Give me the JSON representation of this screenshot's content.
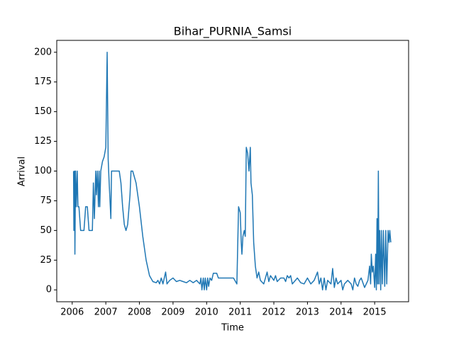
{
  "chart_data": {
    "type": "line",
    "title": "Bihar_PURNIA_Samsi",
    "xlabel": "Time",
    "ylabel": "Arrival",
    "xlim": [
      2005.54,
      2016.01
    ],
    "ylim": [
      -10,
      210
    ],
    "xticks": [
      2006,
      2007,
      2008,
      2009,
      2010,
      2011,
      2012,
      2013,
      2014,
      2015
    ],
    "yticks": [
      0,
      25,
      50,
      75,
      100,
      125,
      150,
      175,
      200
    ],
    "series": [
      {
        "name": "Arrival",
        "color": "#1f77b4",
        "x": [
          2006.04,
          2006.05,
          2006.07,
          2006.08,
          2006.1,
          2006.12,
          2006.15,
          2006.17,
          2006.2,
          2006.25,
          2006.35,
          2006.4,
          2006.45,
          2006.5,
          2006.6,
          2006.63,
          2006.66,
          2006.7,
          2006.72,
          2006.75,
          2006.78,
          2006.8,
          2006.82,
          2006.85,
          2006.9,
          2006.95,
          2007.0,
          2007.04,
          2007.07,
          2007.1,
          2007.15,
          2007.17,
          2007.4,
          2007.45,
          2007.5,
          2007.55,
          2007.6,
          2007.65,
          2007.72,
          2007.75,
          2007.8,
          2007.9,
          2008.0,
          2008.1,
          2008.2,
          2008.3,
          2008.4,
          2008.5,
          2008.55,
          2008.6,
          2008.65,
          2008.7,
          2008.78,
          2008.82,
          2008.9,
          2009.0,
          2009.1,
          2009.2,
          2009.3,
          2009.4,
          2009.5,
          2009.6,
          2009.7,
          2009.8,
          2009.83,
          2009.86,
          2009.9,
          2009.93,
          2009.96,
          2010.0,
          2010.03,
          2010.06,
          2010.1,
          2010.15,
          2010.2,
          2010.3,
          2010.35,
          2010.5,
          2010.6,
          2010.7,
          2010.8,
          2010.9,
          2010.95,
          2011.0,
          2011.03,
          2011.05,
          2011.08,
          2011.12,
          2011.15,
          2011.18,
          2011.22,
          2011.26,
          2011.3,
          2011.32,
          2011.36,
          2011.4,
          2011.45,
          2011.5,
          2011.55,
          2011.6,
          2011.7,
          2011.8,
          2011.85,
          2011.9,
          2012.0,
          2012.05,
          2012.1,
          2012.2,
          2012.3,
          2012.35,
          2012.4,
          2012.45,
          2012.5,
          2012.55,
          2012.7,
          2012.8,
          2012.9,
          2013.0,
          2013.1,
          2013.2,
          2013.3,
          2013.35,
          2013.4,
          2013.45,
          2013.5,
          2013.55,
          2013.6,
          2013.7,
          2013.75,
          2013.8,
          2013.85,
          2013.9,
          2014.0,
          2014.05,
          2014.1,
          2014.2,
          2014.3,
          2014.35,
          2014.4,
          2014.45,
          2014.5,
          2014.55,
          2014.6,
          2014.7,
          2014.8,
          2014.85,
          2014.88,
          2014.9,
          2014.93,
          2014.96,
          2015.0,
          2015.03,
          2015.05,
          2015.07,
          2015.09,
          2015.11,
          2015.13,
          2015.15,
          2015.18,
          2015.2,
          2015.23,
          2015.26,
          2015.3,
          2015.33,
          2015.36,
          2015.4,
          2015.43,
          2015.45,
          2015.48
        ],
        "values": [
          100,
          50,
          100,
          30,
          100,
          70,
          100,
          70,
          70,
          50,
          50,
          70,
          70,
          50,
          50,
          90,
          60,
          100,
          80,
          100,
          70,
          100,
          70,
          100,
          108,
          112,
          120,
          200,
          110,
          90,
          60,
          100,
          100,
          90,
          70,
          55,
          50,
          55,
          80,
          100,
          100,
          90,
          70,
          45,
          25,
          12,
          7,
          6,
          8,
          5,
          10,
          5,
          15,
          5,
          8,
          10,
          7,
          8,
          7,
          6,
          8,
          6,
          8,
          5,
          10,
          0,
          10,
          0,
          10,
          0,
          10,
          3,
          10,
          8,
          14,
          14,
          10,
          10,
          10,
          10,
          10,
          5,
          70,
          65,
          40,
          30,
          45,
          50,
          45,
          120,
          115,
          100,
          120,
          90,
          80,
          40,
          20,
          10,
          15,
          8,
          5,
          15,
          7,
          12,
          8,
          12,
          7,
          10,
          10,
          7,
          12,
          10,
          12,
          5,
          10,
          6,
          5,
          10,
          5,
          8,
          15,
          5,
          10,
          0,
          10,
          0,
          8,
          5,
          18,
          2,
          10,
          5,
          8,
          0,
          5,
          8,
          5,
          0,
          10,
          5,
          3,
          8,
          10,
          2,
          8,
          20,
          5,
          30,
          15,
          20,
          2,
          30,
          0,
          60,
          5,
          100,
          5,
          50,
          0,
          50,
          5,
          50,
          3,
          50,
          5,
          50,
          40,
          50,
          40
        ]
      }
    ]
  }
}
